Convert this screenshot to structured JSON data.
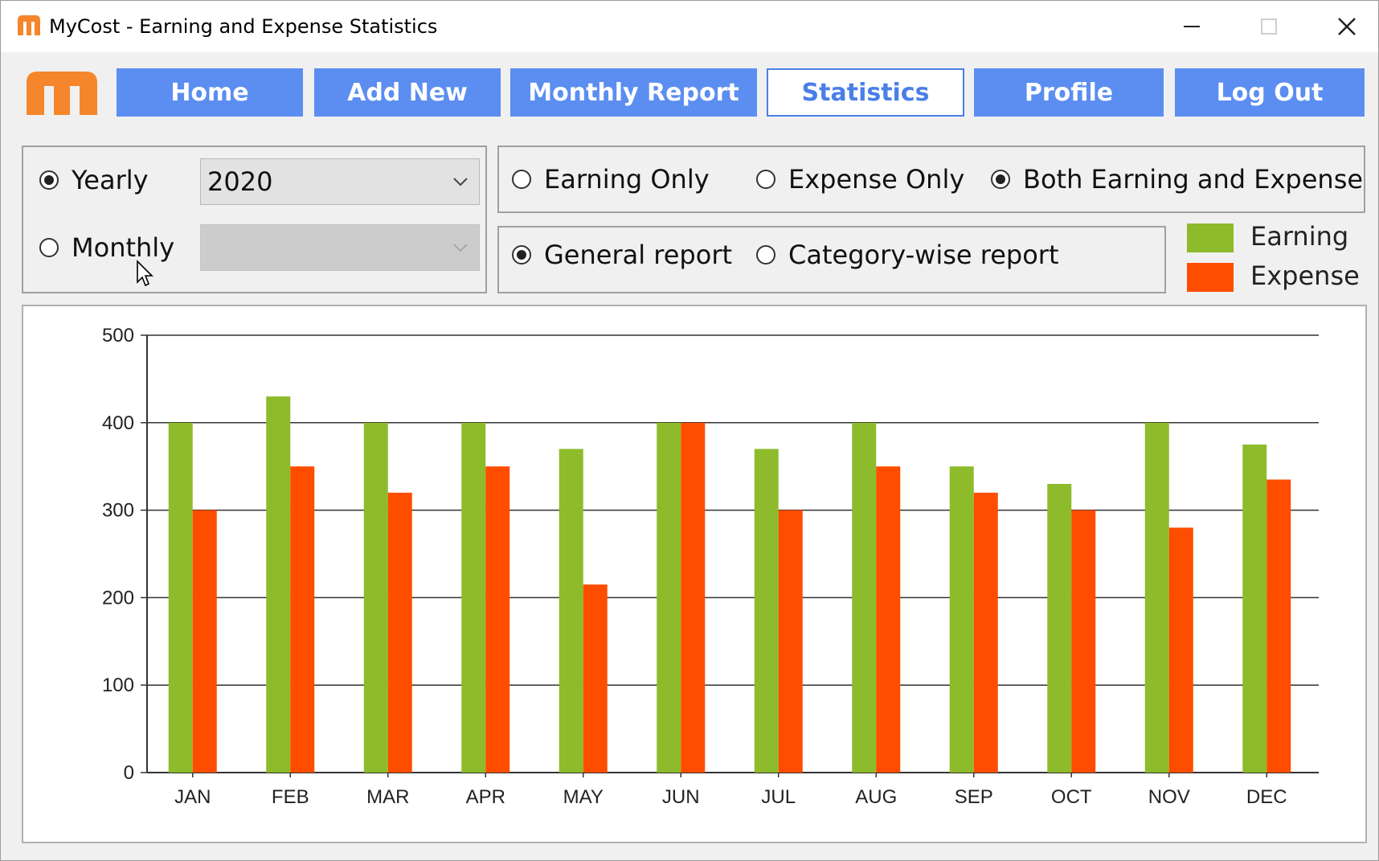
{
  "window": {
    "title": "MyCost - Earning and Expense Statistics",
    "icon": "mycost-logo-icon"
  },
  "nav": {
    "buttons": [
      {
        "label": "Home",
        "active": false
      },
      {
        "label": "Add New",
        "active": false
      },
      {
        "label": "Monthly Report",
        "active": false
      },
      {
        "label": "Statistics",
        "active": true
      },
      {
        "label": "Profile",
        "active": false
      },
      {
        "label": "Log Out",
        "active": false
      }
    ]
  },
  "period": {
    "yearly_label": "Yearly",
    "monthly_label": "Monthly",
    "selected": "Yearly",
    "year_value": "2020",
    "month_value": ""
  },
  "type_filter": {
    "earning_only": "Earning Only",
    "expense_only": "Expense Only",
    "both": "Both Earning and Expense",
    "selected": "Both Earning and Expense"
  },
  "report_type": {
    "general": "General report",
    "category": "Category-wise report",
    "selected": "General report"
  },
  "legend": {
    "earning_label": "Earning",
    "expense_label": "Expense"
  },
  "colors": {
    "accent": "#5b8ef0",
    "earning": "#8dbb2b",
    "expense": "#ff4d00",
    "logo": "#f5862b"
  },
  "chart_data": {
    "type": "bar",
    "categories": [
      "JAN",
      "FEB",
      "MAR",
      "APR",
      "MAY",
      "JUN",
      "JUL",
      "AUG",
      "SEP",
      "OCT",
      "NOV",
      "DEC"
    ],
    "series": [
      {
        "name": "Earning",
        "values": [
          400,
          430,
          400,
          400,
          370,
          400,
          370,
          400,
          350,
          330,
          400,
          375
        ]
      },
      {
        "name": "Expense",
        "values": [
          300,
          350,
          320,
          350,
          215,
          400,
          300,
          350,
          320,
          300,
          280,
          335
        ]
      }
    ],
    "yticks": [
      0,
      100,
      200,
      300,
      400,
      500
    ],
    "ylim": [
      0,
      500
    ],
    "grid": true
  }
}
